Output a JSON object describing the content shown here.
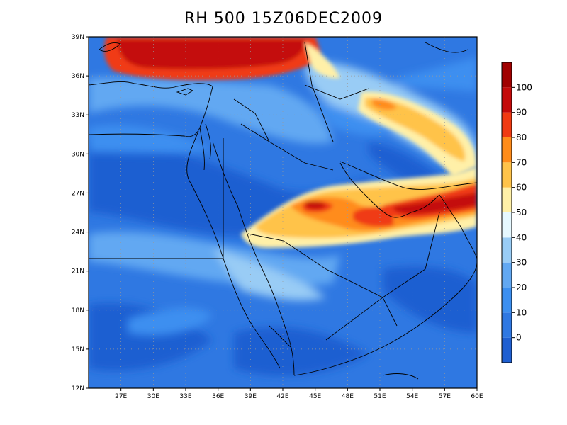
{
  "title": "RH 500 15Z06DEC2009",
  "map": {
    "lon_labels": [
      "27E",
      "30E",
      "33E",
      "36E",
      "39E",
      "42E",
      "45E",
      "48E",
      "51E",
      "54E",
      "57E",
      "60E"
    ],
    "lat_labels": [
      "39N",
      "36N",
      "33N",
      "30N",
      "27N",
      "24N",
      "21N",
      "18N",
      "15N",
      "12N"
    ]
  },
  "colorbar": {
    "levels": [
      "0",
      "10",
      "20",
      "30",
      "40",
      "50",
      "60",
      "70",
      "80",
      "90",
      "100"
    ],
    "colors": [
      "#1f5fd1",
      "#2f78e2",
      "#3c8ff0",
      "#62a8f2",
      "#99ccf5",
      "#e6f8ff",
      "#fff0a8",
      "#ffc34a",
      "#ff8c1a",
      "#f03a12",
      "#c40a0a",
      "#a00000"
    ]
  },
  "palette": {
    "ocean": "#2f78e2",
    "bg_dark": "#1f5fd1"
  }
}
